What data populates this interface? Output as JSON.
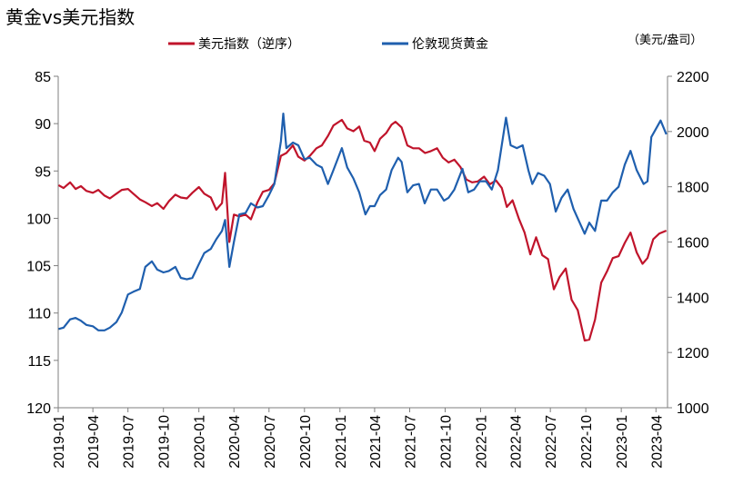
{
  "chart_data": {
    "type": "line",
    "title": "黄金vs美元指数",
    "unit_right": "（美元/盎司）",
    "legend": [
      "美元指数（逆序）",
      "伦敦现货黄金"
    ],
    "legend_placement": "top",
    "grid": false,
    "x_ticks": [
      "2019-01",
      "2019-04",
      "2019-07",
      "2019-10",
      "2020-01",
      "2020-04",
      "2020-07",
      "2020-10",
      "2021-01",
      "2021-04",
      "2021-07",
      "2021-10",
      "2022-01",
      "2022-04",
      "2022-07",
      "2022-10",
      "2023-01",
      "2023-04"
    ],
    "left_axis": {
      "min": 85,
      "max": 120,
      "inverted": true,
      "ticks": [
        "85",
        "90",
        "95",
        "100",
        "105",
        "110",
        "115",
        "120"
      ]
    },
    "right_axis": {
      "min": 1000,
      "max": 2200,
      "ticks": [
        "1000",
        "1200",
        "1400",
        "1600",
        "1800",
        "2000",
        "2200"
      ]
    },
    "series": [
      {
        "name": "美元指数（逆序）",
        "color": "#c0142b",
        "axis": "left",
        "x": [
          "2019-01-02",
          "2019-01-15",
          "2019-02-01",
          "2019-02-15",
          "2019-03-01",
          "2019-03-15",
          "2019-04-01",
          "2019-04-15",
          "2019-05-01",
          "2019-05-15",
          "2019-06-01",
          "2019-06-15",
          "2019-07-01",
          "2019-07-15",
          "2019-08-01",
          "2019-08-15",
          "2019-09-01",
          "2019-09-15",
          "2019-10-01",
          "2019-10-15",
          "2019-11-01",
          "2019-11-15",
          "2019-12-01",
          "2019-12-15",
          "2020-01-01",
          "2020-01-15",
          "2020-02-01",
          "2020-02-15",
          "2020-03-01",
          "2020-03-09",
          "2020-03-20",
          "2020-04-01",
          "2020-04-15",
          "2020-05-01",
          "2020-05-15",
          "2020-06-01",
          "2020-06-15",
          "2020-07-01",
          "2020-07-15",
          "2020-08-01",
          "2020-08-15",
          "2020-09-01",
          "2020-09-15",
          "2020-10-01",
          "2020-10-15",
          "2020-11-01",
          "2020-11-15",
          "2020-12-01",
          "2020-12-15",
          "2021-01-06",
          "2021-01-20",
          "2021-02-05",
          "2021-02-20",
          "2021-03-05",
          "2021-03-20",
          "2021-04-01",
          "2021-04-15",
          "2021-05-01",
          "2021-05-15",
          "2021-05-25",
          "2021-06-10",
          "2021-06-25",
          "2021-07-10",
          "2021-07-25",
          "2021-08-10",
          "2021-08-25",
          "2021-09-10",
          "2021-09-25",
          "2021-10-10",
          "2021-10-25",
          "2021-11-10",
          "2021-11-25",
          "2021-12-10",
          "2021-12-25",
          "2022-01-10",
          "2022-01-25",
          "2022-02-10",
          "2022-02-25",
          "2022-03-10",
          "2022-03-25",
          "2022-04-10",
          "2022-04-25",
          "2022-05-10",
          "2022-05-25",
          "2022-06-10",
          "2022-06-25",
          "2022-07-10",
          "2022-07-25",
          "2022-08-10",
          "2022-08-25",
          "2022-09-10",
          "2022-09-28",
          "2022-10-10",
          "2022-10-25",
          "2022-11-10",
          "2022-11-25",
          "2022-12-10",
          "2022-12-25",
          "2023-01-10",
          "2023-01-25",
          "2023-02-10",
          "2023-02-25",
          "2023-03-10",
          "2023-03-25",
          "2023-04-10",
          "2023-04-28"
        ],
        "values": [
          96.5,
          96.8,
          96.2,
          96.9,
          96.6,
          97.1,
          97.3,
          97.0,
          97.6,
          97.9,
          97.4,
          97.0,
          96.9,
          97.4,
          98.0,
          98.3,
          98.7,
          98.4,
          99.0,
          98.2,
          97.5,
          97.8,
          97.9,
          97.3,
          96.7,
          97.4,
          97.8,
          99.1,
          98.4,
          95.2,
          102.5,
          99.6,
          99.8,
          99.6,
          100.1,
          98.3,
          97.2,
          97.0,
          96.3,
          93.4,
          93.1,
          92.3,
          93.5,
          93.9,
          93.4,
          92.6,
          92.3,
          91.3,
          90.2,
          89.6,
          90.5,
          90.8,
          90.3,
          91.8,
          92.0,
          92.9,
          91.6,
          91.0,
          90.1,
          89.8,
          90.4,
          92.3,
          92.6,
          92.6,
          93.1,
          92.9,
          92.6,
          93.6,
          94.1,
          93.8,
          94.6,
          95.9,
          96.2,
          96.1,
          95.6,
          96.4,
          96.0,
          96.8,
          98.8,
          98.1,
          100.0,
          101.5,
          103.8,
          102.0,
          103.9,
          104.3,
          107.5,
          106.2,
          105.3,
          108.6,
          109.7,
          112.9,
          112.8,
          110.7,
          106.8,
          105.6,
          104.2,
          104.0,
          102.6,
          101.5,
          103.6,
          104.8,
          104.2,
          102.2,
          101.6,
          101.3
        ]
      },
      {
        "name": "伦敦现货黄金",
        "color": "#1f5fae",
        "axis": "right",
        "x": [
          "2019-01-02",
          "2019-01-15",
          "2019-02-01",
          "2019-02-15",
          "2019-03-01",
          "2019-03-15",
          "2019-04-01",
          "2019-04-15",
          "2019-05-01",
          "2019-05-15",
          "2019-06-01",
          "2019-06-15",
          "2019-07-01",
          "2019-07-15",
          "2019-08-01",
          "2019-08-15",
          "2019-09-01",
          "2019-09-15",
          "2019-10-01",
          "2019-10-15",
          "2019-11-01",
          "2019-11-15",
          "2019-12-01",
          "2019-12-15",
          "2020-01-01",
          "2020-01-15",
          "2020-02-01",
          "2020-02-15",
          "2020-03-01",
          "2020-03-09",
          "2020-03-20",
          "2020-04-01",
          "2020-04-15",
          "2020-05-01",
          "2020-05-15",
          "2020-06-01",
          "2020-06-15",
          "2020-07-01",
          "2020-07-15",
          "2020-08-01",
          "2020-08-07",
          "2020-08-15",
          "2020-09-01",
          "2020-09-15",
          "2020-10-01",
          "2020-10-15",
          "2020-11-01",
          "2020-11-15",
          "2020-12-01",
          "2020-12-15",
          "2021-01-06",
          "2021-01-20",
          "2021-02-05",
          "2021-02-20",
          "2021-03-08",
          "2021-03-20",
          "2021-04-01",
          "2021-04-15",
          "2021-05-01",
          "2021-05-15",
          "2021-06-01",
          "2021-06-10",
          "2021-06-25",
          "2021-07-10",
          "2021-07-25",
          "2021-08-09",
          "2021-08-25",
          "2021-09-10",
          "2021-09-28",
          "2021-10-10",
          "2021-10-25",
          "2021-11-15",
          "2021-11-30",
          "2021-12-15",
          "2021-12-30",
          "2022-01-15",
          "2022-01-30",
          "2022-02-15",
          "2022-03-08",
          "2022-03-20",
          "2022-04-05",
          "2022-04-20",
          "2022-05-05",
          "2022-05-15",
          "2022-05-30",
          "2022-06-15",
          "2022-06-30",
          "2022-07-15",
          "2022-07-30",
          "2022-08-15",
          "2022-08-30",
          "2022-09-15",
          "2022-09-28",
          "2022-10-10",
          "2022-10-25",
          "2022-11-10",
          "2022-11-25",
          "2022-12-10",
          "2022-12-25",
          "2023-01-10",
          "2023-01-25",
          "2023-02-10",
          "2023-02-28",
          "2023-03-10",
          "2023-03-20",
          "2023-04-05",
          "2023-04-13",
          "2023-04-28"
        ],
        "values": [
          1285,
          1290,
          1320,
          1325,
          1315,
          1300,
          1295,
          1280,
          1280,
          1290,
          1310,
          1345,
          1410,
          1420,
          1430,
          1510,
          1530,
          1500,
          1490,
          1495,
          1510,
          1470,
          1465,
          1470,
          1520,
          1560,
          1575,
          1610,
          1640,
          1680,
          1510,
          1600,
          1700,
          1705,
          1740,
          1725,
          1730,
          1770,
          1810,
          1965,
          2065,
          1940,
          1960,
          1950,
          1900,
          1905,
          1880,
          1870,
          1810,
          1860,
          1940,
          1870,
          1830,
          1780,
          1700,
          1730,
          1730,
          1770,
          1790,
          1860,
          1905,
          1890,
          1780,
          1805,
          1810,
          1740,
          1790,
          1790,
          1750,
          1760,
          1790,
          1865,
          1780,
          1790,
          1820,
          1820,
          1790,
          1860,
          2050,
          1950,
          1940,
          1950,
          1860,
          1810,
          1850,
          1840,
          1810,
          1710,
          1760,
          1790,
          1720,
          1670,
          1630,
          1670,
          1640,
          1750,
          1750,
          1780,
          1800,
          1880,
          1930,
          1860,
          1810,
          1820,
          1980,
          2020,
          2040,
          1990
        ]
      }
    ]
  }
}
